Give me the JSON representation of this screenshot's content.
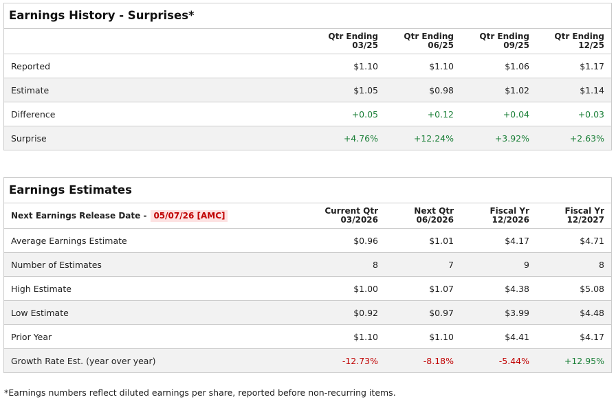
{
  "history": {
    "title": "Earnings History - Surprises*",
    "columns": [
      [
        "Qtr Ending",
        "03/25"
      ],
      [
        "Qtr Ending",
        "06/25"
      ],
      [
        "Qtr Ending",
        "09/25"
      ],
      [
        "Qtr Ending",
        "12/25"
      ]
    ],
    "rows": [
      [
        "Reported",
        "$1.10",
        "$1.10",
        "$1.06",
        "$1.17"
      ],
      [
        "Estimate",
        "$1.05",
        "$0.98",
        "$1.02",
        "$1.14"
      ],
      [
        "Difference",
        "+0.05",
        "+0.12",
        "+0.04",
        "+0.03"
      ],
      [
        "Surprise",
        "+4.76%",
        "+12.24%",
        "+3.92%",
        "+2.63%"
      ]
    ]
  },
  "estimates": {
    "title": "Earnings Estimates",
    "release_label": "Next Earnings Release Date -",
    "release_date": "05/07/26 [AMC]",
    "columns": [
      [
        "Current Qtr",
        "03/2026"
      ],
      [
        "Next Qtr",
        "06/2026"
      ],
      [
        "Fiscal Yr",
        "12/2026"
      ],
      [
        "Fiscal Yr",
        "12/2027"
      ]
    ],
    "rows": [
      [
        "Average Earnings Estimate",
        "$0.96",
        "$1.01",
        "$4.17",
        "$4.71"
      ],
      [
        "Number of Estimates",
        "8",
        "7",
        "9",
        "8"
      ],
      [
        "High Estimate",
        "$1.00",
        "$1.07",
        "$4.38",
        "$5.08"
      ],
      [
        "Low Estimate",
        "$0.92",
        "$0.97",
        "$3.99",
        "$4.48"
      ],
      [
        "Prior Year",
        "$1.10",
        "$1.10",
        "$4.41",
        "$4.17"
      ],
      [
        "Growth Rate Est. (year over year)",
        "-12.73%",
        "-8.18%",
        "-5.44%",
        "+12.95%"
      ]
    ]
  },
  "footnote": "*Earnings numbers reflect diluted earnings per share, reported before non-recurring items."
}
